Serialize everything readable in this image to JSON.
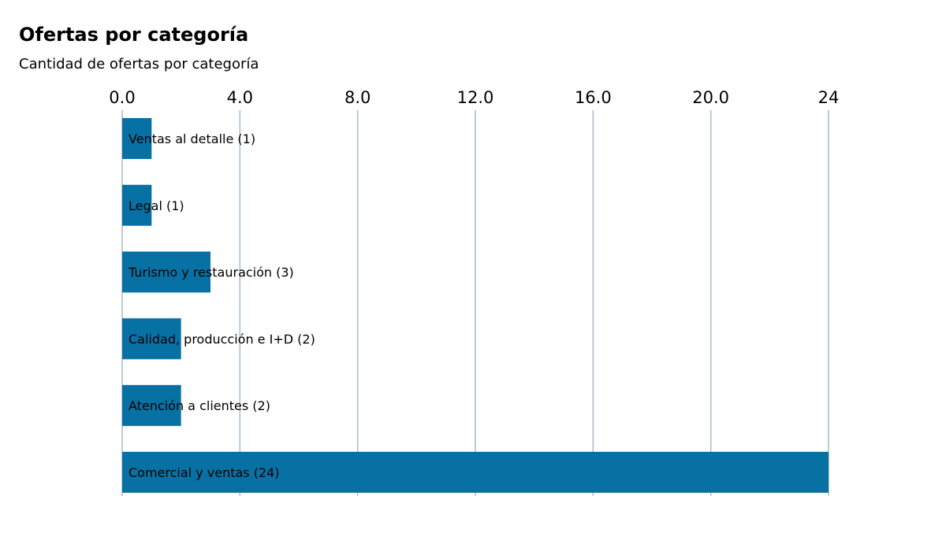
{
  "chart_data": {
    "type": "bar",
    "orientation": "horizontal",
    "title": "Ofertas por categoría",
    "subtitle": "Cantidad de ofertas por categoría",
    "categories": [
      "Ventas al detalle",
      "Legal",
      "Turismo y restauración",
      "Calidad, producción e I+D",
      "Atención a clientes",
      "Comercial y ventas"
    ],
    "values": [
      1,
      1,
      3,
      2,
      2,
      24
    ],
    "bar_labels": [
      "Ventas al detalle (1)",
      "Legal (1)",
      "Turismo y restauración (3)",
      "Calidad, producción e I+D (2)",
      "Atención a clientes (2)",
      "Comercial y ventas (24)"
    ],
    "x_ticks": [
      "0.0",
      "4.0",
      "8.0",
      "12.0",
      "16.0",
      "20.0",
      "24"
    ],
    "x_tick_values": [
      0,
      4,
      8,
      12,
      16,
      20,
      24
    ],
    "xlim": [
      0,
      24
    ],
    "x_axis_position": "top",
    "grid": true,
    "colors": {
      "bar": "#0871a4",
      "grid": "#b0bcc7"
    }
  }
}
